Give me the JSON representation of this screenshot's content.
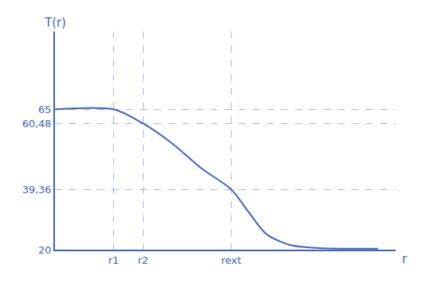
{
  "chart_data": {
    "type": "line",
    "xlabel": "r",
    "ylabel": "T(r)",
    "x": [
      0,
      1,
      1.5,
      2,
      2.5,
      3,
      3.3,
      3.6,
      4,
      4.5,
      5.5
    ],
    "values": [
      65,
      65,
      60.48,
      54,
      46,
      39.36,
      32,
      25,
      21.5,
      20.5,
      20.3
    ],
    "color": "#3b5fc4",
    "line_style": "solid",
    "xlim": [
      0,
      5.8
    ],
    "ylim": [
      20,
      90
    ],
    "xticks": [
      {
        "value": 1,
        "label": "r1"
      },
      {
        "value": 1.5,
        "label": "r2"
      },
      {
        "value": 3,
        "label": "rext"
      }
    ],
    "yticks": [
      20,
      {
        "value": 39.36,
        "label": "39,36"
      },
      {
        "value": 60.48,
        "label": "60,48"
      },
      65
    ],
    "grid": true
  }
}
